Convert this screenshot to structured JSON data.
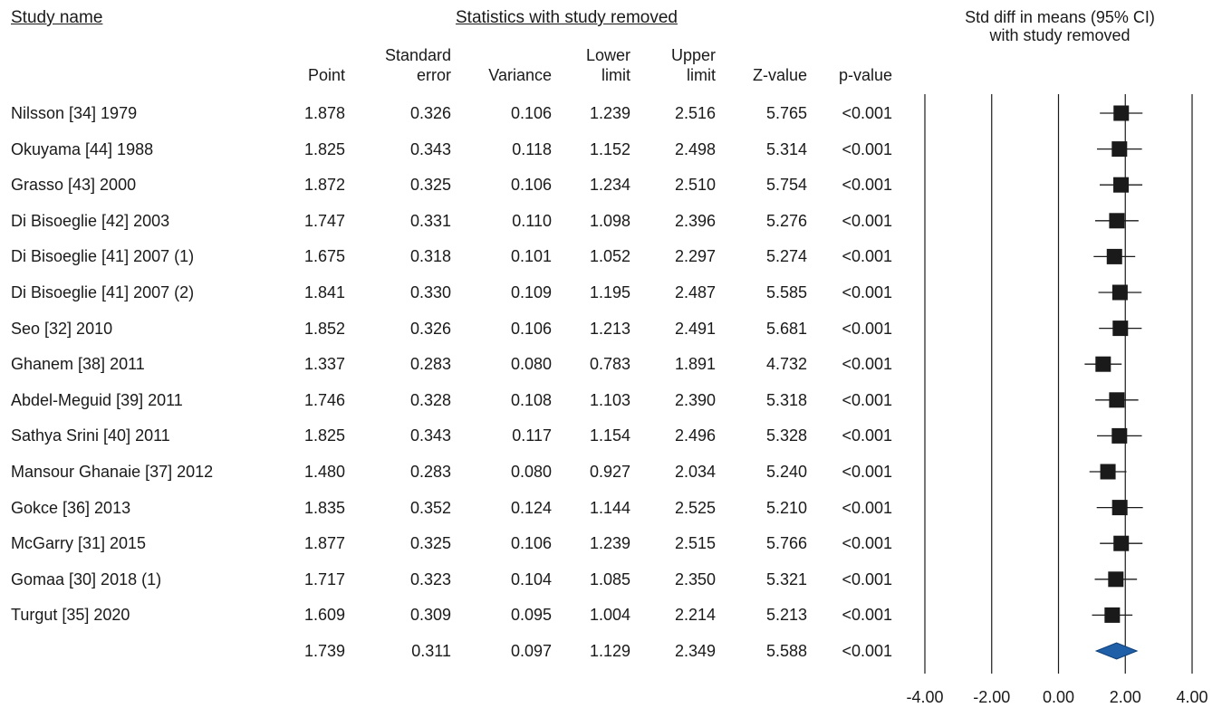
{
  "headers": {
    "study_name": "Study name",
    "statistics": "Statistics with study removed",
    "plot_title_line1": "Std diff in means (95% CI)",
    "plot_title_line2": "with study removed"
  },
  "columns": [
    {
      "line1": "",
      "line2": "Point"
    },
    {
      "line1": "Standard",
      "line2": "error"
    },
    {
      "line1": "",
      "line2": "Variance"
    },
    {
      "line1": "Lower",
      "line2": "limit"
    },
    {
      "line1": "Upper",
      "line2": "limit"
    },
    {
      "line1": "",
      "line2": "Z-value"
    },
    {
      "line1": "",
      "line2": "p-value"
    }
  ],
  "rows": [
    {
      "study": "Nilsson [34] 1979",
      "point": "1.878",
      "se": "0.326",
      "variance": "0.106",
      "lower": "1.239",
      "upper": "2.516",
      "z": "5.765",
      "p": "<0.001"
    },
    {
      "study": "Okuyama [44] 1988",
      "point": "1.825",
      "se": "0.343",
      "variance": "0.118",
      "lower": "1.152",
      "upper": "2.498",
      "z": "5.314",
      "p": "<0.001"
    },
    {
      "study": "Grasso [43] 2000",
      "point": "1.872",
      "se": "0.325",
      "variance": "0.106",
      "lower": "1.234",
      "upper": "2.510",
      "z": "5.754",
      "p": "<0.001"
    },
    {
      "study": "Di Bisoeglie [42] 2003",
      "point": "1.747",
      "se": "0.331",
      "variance": "0.110",
      "lower": "1.098",
      "upper": "2.396",
      "z": "5.276",
      "p": "<0.001"
    },
    {
      "study": "Di Bisoeglie [41] 2007 (1)",
      "point": "1.675",
      "se": "0.318",
      "variance": "0.101",
      "lower": "1.052",
      "upper": "2.297",
      "z": "5.274",
      "p": "<0.001"
    },
    {
      "study": "Di Bisoeglie [41] 2007 (2)",
      "point": "1.841",
      "se": "0.330",
      "variance": "0.109",
      "lower": "1.195",
      "upper": "2.487",
      "z": "5.585",
      "p": "<0.001"
    },
    {
      "study": "Seo [32] 2010",
      "point": "1.852",
      "se": "0.326",
      "variance": "0.106",
      "lower": "1.213",
      "upper": "2.491",
      "z": "5.681",
      "p": "<0.001"
    },
    {
      "study": "Ghanem [38] 2011",
      "point": "1.337",
      "se": "0.283",
      "variance": "0.080",
      "lower": "0.783",
      "upper": "1.891",
      "z": "4.732",
      "p": "<0.001"
    },
    {
      "study": "Abdel-Meguid [39] 2011",
      "point": "1.746",
      "se": "0.328",
      "variance": "0.108",
      "lower": "1.103",
      "upper": "2.390",
      "z": "5.318",
      "p": "<0.001"
    },
    {
      "study": "Sathya Srini [40] 2011",
      "point": "1.825",
      "se": "0.343",
      "variance": "0.117",
      "lower": "1.154",
      "upper": "2.496",
      "z": "5.328",
      "p": "<0.001"
    },
    {
      "study": "Mansour Ghanaie [37] 2012",
      "point": "1.480",
      "se": "0.283",
      "variance": "0.080",
      "lower": "0.927",
      "upper": "2.034",
      "z": "5.240",
      "p": "<0.001"
    },
    {
      "study": "Gokce [36] 2013",
      "point": "1.835",
      "se": "0.352",
      "variance": "0.124",
      "lower": "1.144",
      "upper": "2.525",
      "z": "5.210",
      "p": "<0.001"
    },
    {
      "study": "McGarry [31] 2015",
      "point": "1.877",
      "se": "0.325",
      "variance": "0.106",
      "lower": "1.239",
      "upper": "2.515",
      "z": "5.766",
      "p": "<0.001"
    },
    {
      "study": "Gomaa [30] 2018 (1)",
      "point": "1.717",
      "se": "0.323",
      "variance": "0.104",
      "lower": "1.085",
      "upper": "2.350",
      "z": "5.321",
      "p": "<0.001"
    },
    {
      "study": "Turgut [35] 2020",
      "point": "1.609",
      "se": "0.309",
      "variance": "0.095",
      "lower": "1.004",
      "upper": "2.214",
      "z": "5.213",
      "p": "<0.001"
    }
  ],
  "summary": {
    "study": "",
    "point": "1.739",
    "se": "0.311",
    "variance": "0.097",
    "lower": "1.129",
    "upper": "2.349",
    "z": "5.588",
    "p": "<0.001"
  },
  "chart_data": {
    "type": "scatter",
    "subtype": "forest",
    "title": "Std diff in means (95% CI) with study removed",
    "xlim": [
      -4,
      4
    ],
    "xticks": [
      "-4.00",
      "-2.00",
      "0.00",
      "2.00",
      "4.00"
    ],
    "tick_values": [
      -4,
      -2,
      0,
      2,
      4
    ],
    "categories": [
      "Nilsson [34] 1979",
      "Okuyama [44] 1988",
      "Grasso [43] 2000",
      "Di Bisoeglie [42] 2003",
      "Di Bisoeglie [41] 2007 (1)",
      "Di Bisoeglie [41] 2007 (2)",
      "Seo [32] 2010",
      "Ghanem [38] 2011",
      "Abdel-Meguid [39] 2011",
      "Sathya Srini [40] 2011",
      "Mansour Ghanaie [37] 2012",
      "Gokce [36] 2013",
      "McGarry [31] 2015",
      "Gomaa [30] 2018 (1)",
      "Turgut [35] 2020"
    ],
    "point": [
      1.878,
      1.825,
      1.872,
      1.747,
      1.675,
      1.841,
      1.852,
      1.337,
      1.746,
      1.825,
      1.48,
      1.835,
      1.877,
      1.717,
      1.609
    ],
    "lower": [
      1.239,
      1.152,
      1.234,
      1.098,
      1.052,
      1.195,
      1.213,
      0.783,
      1.103,
      1.154,
      0.927,
      1.144,
      1.239,
      1.085,
      1.004
    ],
    "upper": [
      2.516,
      2.498,
      2.51,
      2.396,
      2.297,
      2.487,
      2.491,
      1.891,
      2.39,
      2.496,
      2.034,
      2.525,
      2.515,
      2.35,
      2.214
    ],
    "summary": {
      "point": 1.739,
      "lower": 1.129,
      "upper": 2.349
    },
    "marker_color": "#1a1a1a",
    "diamond_color": "#1f5fa8"
  }
}
